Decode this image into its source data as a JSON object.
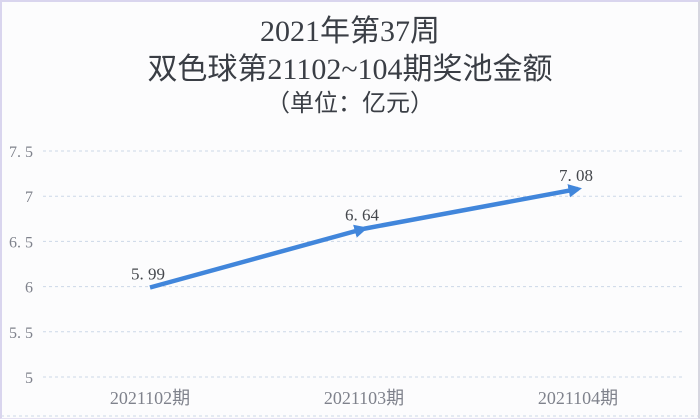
{
  "title": {
    "week_line": "2021年第37周",
    "subject_line": "双色球第21102~104期奖池金额",
    "unit_line": "（单位：亿元）"
  },
  "chart_data": {
    "type": "line",
    "title": "2021年第37周 双色球第21102~104期奖池金额",
    "unit_label": "（单位：亿元）",
    "categories": [
      "2021102期",
      "2021103期",
      "2021104期"
    ],
    "values": [
      5.99,
      6.64,
      7.08
    ],
    "data_labels": [
      "5.99",
      "6.64",
      "7.08"
    ],
    "xlabel": "",
    "ylabel": "",
    "ylim": [
      5,
      7.5
    ],
    "yticks": [
      5,
      5.5,
      6,
      6.5,
      7,
      7.5
    ],
    "grid": true,
    "gridline_style": "dashed",
    "legend": "none",
    "marker": "arrow"
  },
  "colors": {
    "line": "#4186db",
    "grid": "#ccd8e8",
    "axis_text": "#7f828c",
    "data_label_text": "#45484d",
    "title_text": "#3a3e45",
    "background": "#fcfcfd",
    "border": "#d9d5ee"
  }
}
